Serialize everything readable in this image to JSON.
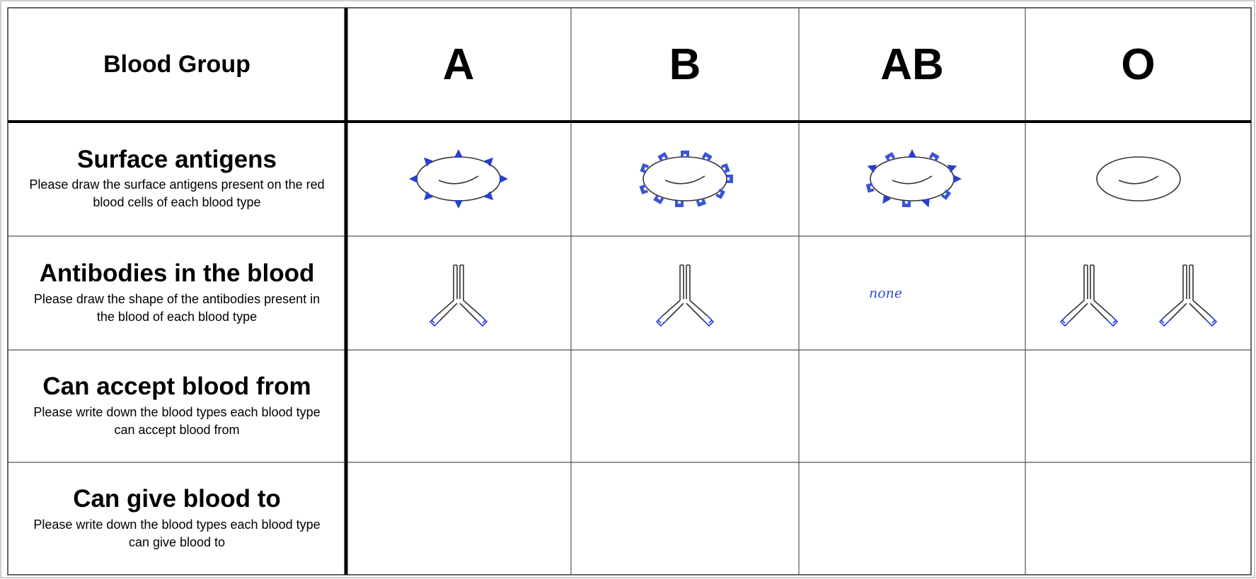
{
  "table": {
    "header": "Blood Group",
    "groups": [
      "A",
      "B",
      "AB",
      "O"
    ],
    "rows": [
      {
        "title": "Surface antigens",
        "instruction": "Please draw the surface antigens present on the red blood cells of each blood type"
      },
      {
        "title": "Antibodies in the blood",
        "instruction": "Please draw the shape of the antibodies present in the blood of each blood type"
      },
      {
        "title": "Can accept blood from",
        "instruction": "Please write down the blood types each blood type can accept blood from"
      },
      {
        "title": "Can give blood to",
        "instruction": "Please write down the blood types each blood type can give blood to"
      }
    ],
    "antibodies_answer_ab": "none"
  }
}
